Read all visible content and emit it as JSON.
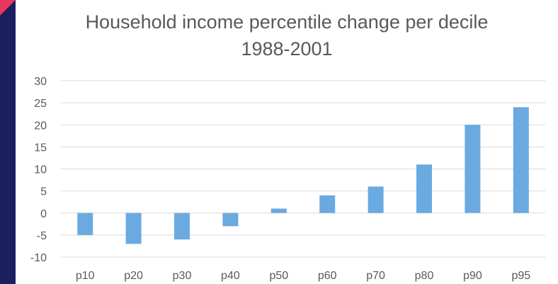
{
  "colors": {
    "bar": "#6aaae0",
    "grid": "#d9d9d9",
    "text": "#595959",
    "sidebar": "#1b1f5e",
    "corner_accent": "#e8375a"
  },
  "chart_data": {
    "type": "bar",
    "title": "Household income percentile change per decile",
    "subtitle": "1988-2001",
    "xlabel": "",
    "ylabel": "",
    "categories": [
      "p10",
      "p20",
      "p30",
      "p40",
      "p50",
      "p60",
      "p70",
      "p80",
      "p90",
      "p95"
    ],
    "values": [
      -5,
      -7,
      -6,
      -3,
      1,
      4,
      6,
      11,
      20,
      24
    ],
    "ylim": [
      -10,
      30
    ],
    "yticks": [
      30,
      25,
      20,
      15,
      10,
      5,
      0,
      -5,
      -10
    ],
    "grid": true,
    "legend": "none"
  }
}
